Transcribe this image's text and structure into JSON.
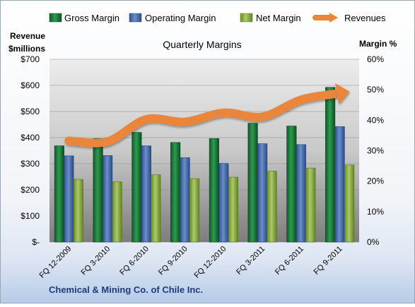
{
  "chart_data": {
    "type": "bar",
    "title": "Quarterly Margins",
    "company": "Chemical & Mining Co. of Chile Inc.",
    "left_axis_label": [
      "Revenue",
      "$millions"
    ],
    "right_axis_label": "Margin %",
    "categories": [
      "FQ 12-2009",
      "FQ 3-2010",
      "FQ 6-2010",
      "FQ 9-2010",
      "FQ 12-2010",
      "FQ 3-2011",
      "FQ 6-2011",
      "FQ 9-2011"
    ],
    "left_ticks": [
      "$-",
      "$100",
      "$200",
      "$300",
      "$400",
      "$500",
      "$600",
      "$700"
    ],
    "right_ticks": [
      "0%",
      "10%",
      "20%",
      "30%",
      "40%",
      "50%",
      "60%"
    ],
    "left_ylim": [
      0,
      700
    ],
    "right_ylim": [
      0,
      60
    ],
    "series": [
      {
        "name": "Gross Margin",
        "kind": "bar",
        "axis": "right",
        "color": "#1f7a3f",
        "values": [
          31.6,
          34.0,
          36.0,
          32.7,
          34.0,
          39.0,
          38.1,
          50.8
        ]
      },
      {
        "name": "Operating Margin",
        "kind": "bar",
        "axis": "right",
        "color": "#4a6fb0",
        "values": [
          28.3,
          28.4,
          31.6,
          27.7,
          25.8,
          32.3,
          32.0,
          37.9
        ]
      },
      {
        "name": "Net Margin",
        "kind": "bar",
        "axis": "right",
        "color": "#8fb04a",
        "values": [
          20.6,
          19.8,
          22.1,
          20.8,
          21.3,
          23.3,
          24.3,
          25.3
        ]
      },
      {
        "name": "Revenues",
        "kind": "line",
        "axis": "left",
        "color": "#e9863a",
        "values": [
          388,
          385,
          470,
          460,
          495,
          480,
          545,
          570
        ]
      }
    ],
    "legend_position": "top"
  }
}
